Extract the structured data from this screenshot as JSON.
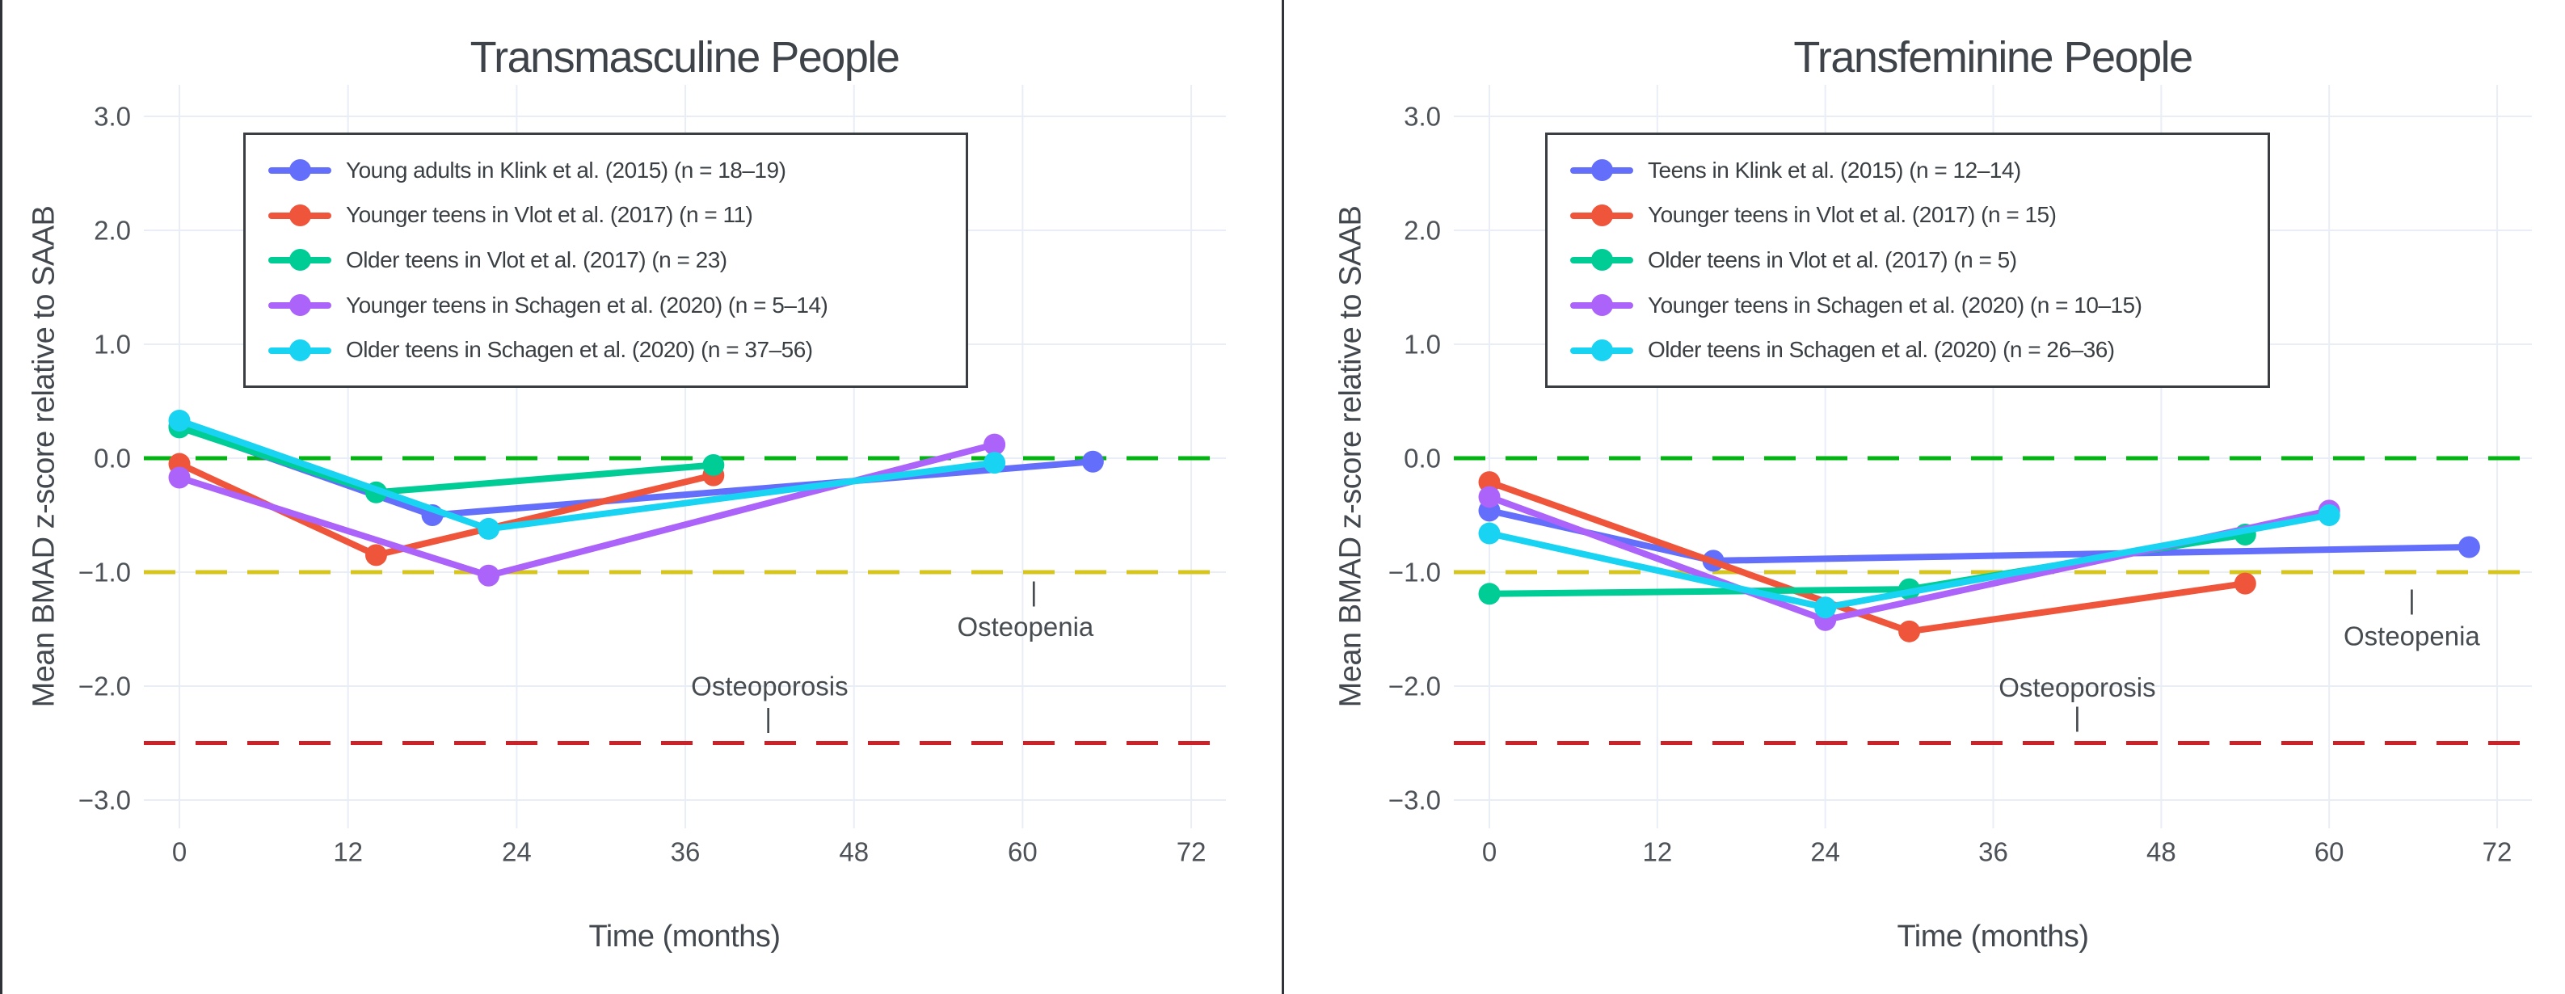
{
  "chart_data": [
    {
      "type": "line",
      "title": "Transmasculine People",
      "xlabel": "Time (months)",
      "ylabel": "Mean BMAD z-score relative to SAAB",
      "x_ticks": [
        0,
        12,
        24,
        36,
        48,
        60,
        72
      ],
      "y_ticks": [
        3.0,
        2.0,
        1.0,
        0.0,
        -1.0,
        -2.0,
        -3.0
      ],
      "x_range": [
        -2.5,
        74.5
      ],
      "y_range": [
        -3.3,
        3.3
      ],
      "grid": true,
      "legend_position": "inside-upper-left",
      "series": [
        {
          "name": "Young adults in Klink et al. (2015) (n = 18–19)",
          "color": "#636EFA",
          "points": [
            [
              0,
              0.28
            ],
            [
              18,
              -0.5
            ],
            [
              65,
              -0.03
            ]
          ]
        },
        {
          "name": "Younger teens in Vlot et al. (2017) (n = 11)",
          "color": "#EF553B",
          "points": [
            [
              0,
              -0.05
            ],
            [
              14,
              -0.85
            ],
            [
              38,
              -0.15
            ]
          ]
        },
        {
          "name": "Older teens in Vlot et al. (2017) (n = 23)",
          "color": "#00CC96",
          "points": [
            [
              0,
              0.27
            ],
            [
              14,
              -0.3
            ],
            [
              38,
              -0.06
            ]
          ]
        },
        {
          "name": "Younger teens in Schagen et al. (2020) (n = 5–14)",
          "color": "#AB63FA",
          "points": [
            [
              0,
              -0.17
            ],
            [
              22,
              -1.03
            ],
            [
              58,
              0.12
            ]
          ]
        },
        {
          "name": "Older teens in Schagen et al. (2020) (n = 37–56)",
          "color": "#19D3F3",
          "points": [
            [
              0,
              0.33
            ],
            [
              22,
              -0.62
            ],
            [
              58,
              -0.04
            ]
          ]
        }
      ],
      "reference_lines": [
        {
          "z": 0.0,
          "color": "#00b50f",
          "style": "dashed",
          "meaning": "zero z-score"
        },
        {
          "z": -1.0,
          "color": "#d6c51c",
          "style": "dashed",
          "meaning": "osteopenia threshold"
        },
        {
          "z": -2.5,
          "color": "#cc2127",
          "style": "dashed",
          "meaning": "osteoporosis threshold"
        }
      ],
      "annotations": [
        {
          "text": "Osteopenia",
          "month": 60.2,
          "z": -1.48,
          "tick_month": 60.8,
          "tick_z": -1.17
        },
        {
          "text": "Osteoporosis",
          "month": 42.0,
          "z": -2.0,
          "tick_month": 41.9,
          "tick_z": -2.28
        }
      ]
    },
    {
      "type": "line",
      "title": "Transfeminine People",
      "xlabel": "Time (months)",
      "ylabel": "Mean BMAD z-score relative to SAAB",
      "x_ticks": [
        0,
        12,
        24,
        36,
        48,
        60,
        72
      ],
      "y_ticks": [
        3.0,
        2.0,
        1.0,
        0.0,
        -1.0,
        -2.0,
        -3.0
      ],
      "x_range": [
        -2.5,
        74.5
      ],
      "y_range": [
        -3.3,
        3.3
      ],
      "grid": true,
      "legend_position": "inside-upper-left",
      "series": [
        {
          "name": "Teens in Klink et al. (2015) (n = 12–14)",
          "color": "#636EFA",
          "points": [
            [
              0,
              -0.46
            ],
            [
              16,
              -0.9
            ],
            [
              70,
              -0.78
            ]
          ]
        },
        {
          "name": "Younger teens in Vlot et al. (2017) (n = 15)",
          "color": "#EF553B",
          "points": [
            [
              0,
              -0.21
            ],
            [
              30,
              -1.52
            ],
            [
              54,
              -1.1
            ]
          ]
        },
        {
          "name": "Older teens in Vlot et al. (2017) (n = 5)",
          "color": "#00CC96",
          "points": [
            [
              0,
              -1.19
            ],
            [
              30,
              -1.15
            ],
            [
              54,
              -0.67
            ]
          ]
        },
        {
          "name": "Younger teens in Schagen et al. (2020) (n = 10–15)",
          "color": "#AB63FA",
          "points": [
            [
              0,
              -0.34
            ],
            [
              24,
              -1.42
            ],
            [
              60,
              -0.46
            ]
          ]
        },
        {
          "name": "Older teens in Schagen et al. (2020) (n = 26–36)",
          "color": "#19D3F3",
          "points": [
            [
              0,
              -0.66
            ],
            [
              24,
              -1.31
            ],
            [
              60,
              -0.5
            ]
          ]
        }
      ],
      "reference_lines": [
        {
          "z": 0.0,
          "color": "#00b50f",
          "style": "dashed",
          "meaning": "zero z-score"
        },
        {
          "z": -1.0,
          "color": "#d6c51c",
          "style": "dashed",
          "meaning": "osteopenia threshold"
        },
        {
          "z": -2.5,
          "color": "#cc2127",
          "style": "dashed",
          "meaning": "osteoporosis threshold"
        }
      ],
      "annotations": [
        {
          "text": "Osteopenia",
          "month": 65.9,
          "z": -1.56,
          "tick_month": 65.9,
          "tick_z": -1.24
        },
        {
          "text": "Osteoporosis",
          "month": 42.0,
          "z": -2.01,
          "tick_month": 42.0,
          "tick_z": -2.27
        }
      ]
    }
  ]
}
